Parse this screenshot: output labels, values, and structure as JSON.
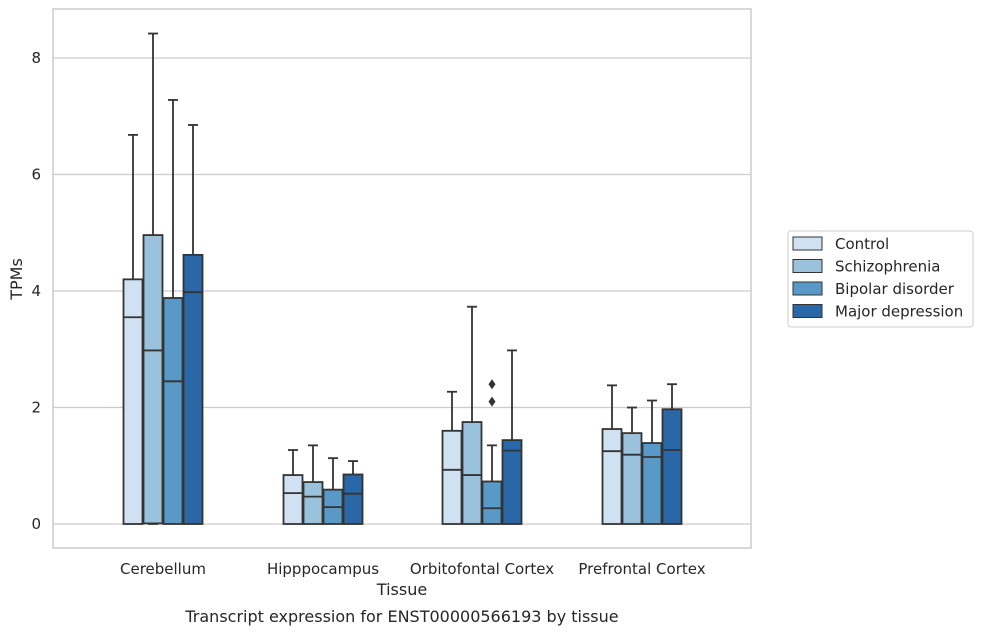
{
  "chart_data": {
    "type": "box",
    "xlabel": "Tissue",
    "ylabel": "TPMs",
    "caption": "Transcript expression for ENST00000566193 by tissue",
    "ylim": [
      -0.4,
      8.85
    ],
    "yticks": [
      "0",
      "2",
      "4",
      "6",
      "8"
    ],
    "grid": "horizontal",
    "legend_position": "right",
    "categories": [
      "Cerebellum",
      "Hipppocampus",
      "Orbitofontal Cortex",
      "Prefrontal Cortex"
    ],
    "series": [
      {
        "name": "Control",
        "color": "#d0e1f2",
        "boxes": [
          {
            "min": 0,
            "q1": 0,
            "median": 3.55,
            "q3": 4.2,
            "max": 6.68,
            "outliers": []
          },
          {
            "min": 0,
            "q1": 0,
            "median": 0.53,
            "q3": 0.84,
            "max": 1.27,
            "outliers": []
          },
          {
            "min": 0,
            "q1": 0,
            "median": 0.93,
            "q3": 1.6,
            "max": 2.27,
            "outliers": []
          },
          {
            "min": 0,
            "q1": 0,
            "median": 1.25,
            "q3": 1.63,
            "max": 2.38,
            "outliers": []
          }
        ]
      },
      {
        "name": "Schizophrenia",
        "color": "#9ac2dd",
        "boxes": [
          {
            "min": 0,
            "q1": 0.01,
            "median": 2.98,
            "q3": 4.96,
            "max": 8.42,
            "outliers": []
          },
          {
            "min": 0,
            "q1": 0,
            "median": 0.47,
            "q3": 0.72,
            "max": 1.35,
            "outliers": []
          },
          {
            "min": 0,
            "q1": 0,
            "median": 0.84,
            "q3": 1.75,
            "max": 3.73,
            "outliers": []
          },
          {
            "min": 0,
            "q1": 0,
            "median": 1.19,
            "q3": 1.56,
            "max": 2.0,
            "outliers": []
          }
        ]
      },
      {
        "name": "Bipolar disorder",
        "color": "#5899c7",
        "boxes": [
          {
            "min": 0,
            "q1": 0,
            "median": 2.45,
            "q3": 3.88,
            "max": 7.28,
            "outliers": []
          },
          {
            "min": 0,
            "q1": 0,
            "median": 0.29,
            "q3": 0.59,
            "max": 1.13,
            "outliers": []
          },
          {
            "min": 0,
            "q1": 0,
            "median": 0.27,
            "q3": 0.73,
            "max": 1.35,
            "outliers": [
              2.1,
              2.4
            ]
          },
          {
            "min": 0,
            "q1": 0,
            "median": 1.15,
            "q3": 1.39,
            "max": 2.12,
            "outliers": []
          }
        ]
      },
      {
        "name": "Major depression",
        "color": "#2967a6",
        "boxes": [
          {
            "min": 0,
            "q1": 0,
            "median": 3.98,
            "q3": 4.62,
            "max": 6.85,
            "outliers": []
          },
          {
            "min": 0,
            "q1": 0,
            "median": 0.52,
            "q3": 0.85,
            "max": 1.08,
            "outliers": []
          },
          {
            "min": 0,
            "q1": 0,
            "median": 1.26,
            "q3": 1.44,
            "max": 2.98,
            "outliers": []
          },
          {
            "min": 0,
            "q1": 0,
            "median": 1.27,
            "q3": 1.97,
            "max": 2.4,
            "outliers": []
          }
        ]
      }
    ]
  }
}
